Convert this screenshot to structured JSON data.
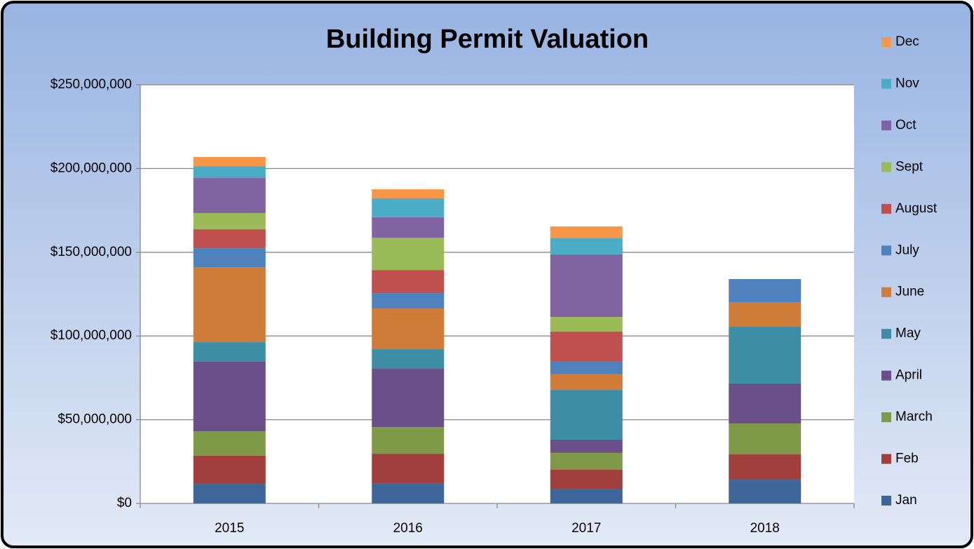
{
  "chart_data": {
    "type": "stacked_bar",
    "title": "Building Permit Valuation",
    "categories": [
      "2015",
      "2016",
      "2017",
      "2018"
    ],
    "series": [
      {
        "name": "Jan",
        "color": "#3f6699",
        "values": [
          11700000,
          12100000,
          8800000,
          14200000
        ]
      },
      {
        "name": "Feb",
        "color": "#a03f3c",
        "values": [
          16800000,
          17600000,
          11300000,
          15100000
        ]
      },
      {
        "name": "March",
        "color": "#7e9a48",
        "values": [
          14600000,
          15900000,
          10100000,
          18400000
        ]
      },
      {
        "name": "April",
        "color": "#6a5089",
        "values": [
          41500000,
          34800000,
          7900000,
          23900000
        ]
      },
      {
        "name": "May",
        "color": "#3d8ea4",
        "values": [
          11700000,
          11700000,
          29700000,
          33900000
        ]
      },
      {
        "name": "June",
        "color": "#cf7c38",
        "values": [
          44800000,
          24300000,
          9300000,
          14700000
        ]
      },
      {
        "name": "July",
        "color": "#4f81bd",
        "values": [
          11300000,
          9200000,
          7900000,
          13800000
        ]
      },
      {
        "name": "August",
        "color": "#c0504d",
        "values": [
          11300000,
          13800000,
          17600000,
          null
        ]
      },
      {
        "name": "Sept",
        "color": "#9bbb59",
        "values": [
          9700000,
          19300000,
          8800000,
          null
        ]
      },
      {
        "name": "Oct",
        "color": "#8064a2",
        "values": [
          20900000,
          12200000,
          37300000,
          null
        ]
      },
      {
        "name": "Nov",
        "color": "#4bacc6",
        "values": [
          7100000,
          11300000,
          9600000,
          null
        ]
      },
      {
        "name": "Dec",
        "color": "#f79646",
        "values": [
          5500000,
          5400000,
          7100000,
          null
        ]
      }
    ],
    "ylim": [
      0,
      250000000
    ],
    "yticks": [
      {
        "value": 0,
        "label": "$0"
      },
      {
        "value": 50000000,
        "label": "$50,000,000"
      },
      {
        "value": 100000000,
        "label": "$100,000,000"
      },
      {
        "value": 150000000,
        "label": "$150,000,000"
      },
      {
        "value": 200000000,
        "label": "$200,000,000"
      },
      {
        "value": 250000000,
        "label": "$250,000,000"
      }
    ],
    "grid": true,
    "legend": "right"
  }
}
